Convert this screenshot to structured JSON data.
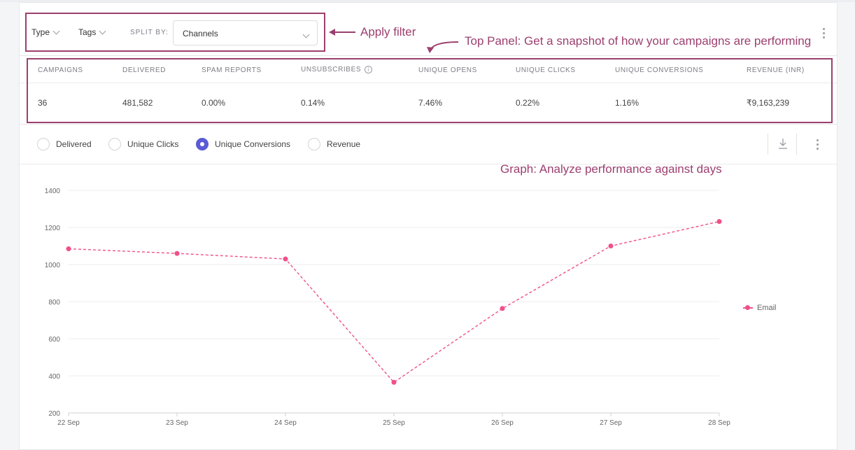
{
  "filters": {
    "type_label": "Type",
    "tags_label": "Tags",
    "split_by_label": "SPLIT BY:",
    "split_by_value": "Channels"
  },
  "annotations": {
    "filter": "Apply filter",
    "top_panel": "Top Panel: Get a snapshot of how your campaigns are performing",
    "graph": "Graph: Analyze performance against days",
    "color": "#9c3f6e"
  },
  "stats": {
    "headers": [
      "CAMPAIGNS",
      "DELIVERED",
      "SPAM REPORTS",
      "UNSUBSCRIBES",
      "UNIQUE OPENS",
      "UNIQUE CLICKS",
      "UNIQUE CONVERSIONS",
      "REVENUE (INR)"
    ],
    "values": [
      "36",
      "481,582",
      "0.00%",
      "0.14%",
      "7.46%",
      "0.22%",
      "1.16%",
      "₹9,163,239"
    ],
    "info_icon": "info-icon"
  },
  "metrics": {
    "options": [
      "Delivered",
      "Unique Clicks",
      "Unique Conversions",
      "Revenue"
    ],
    "selected": "Unique Conversions",
    "accent": "#5b5bd6"
  },
  "chart_data": {
    "type": "line",
    "categories": [
      "22 Sep",
      "23 Sep",
      "24 Sep",
      "25 Sep",
      "26 Sep",
      "27 Sep",
      "28 Sep"
    ],
    "series": [
      {
        "name": "Email",
        "values": [
          1085,
          1060,
          1030,
          365,
          763,
          1100,
          1232
        ],
        "color": "#f0508a"
      }
    ],
    "yticks": [
      200,
      400,
      600,
      800,
      1000,
      1200,
      1400
    ],
    "ylim": [
      200,
      1400
    ],
    "legend_position": "right",
    "grid": true
  }
}
